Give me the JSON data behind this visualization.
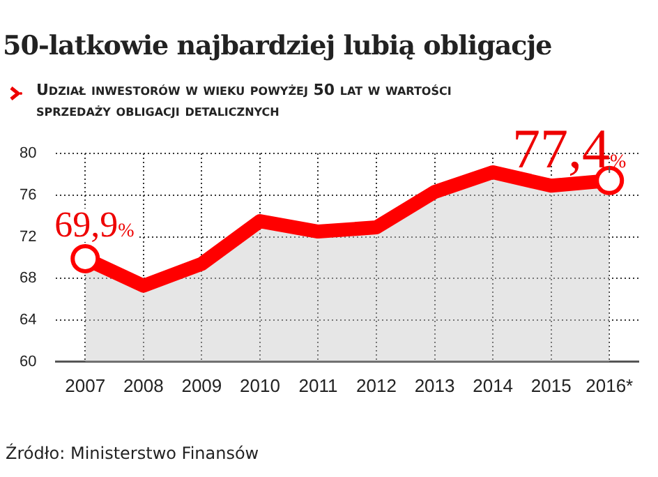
{
  "chart_data": {
    "type": "area",
    "title": "50-latkowie najbardziej lubią obligacje",
    "subtitle": "Udział inwestorów w wieku powyżej 50 lat w wartości sprzedaży obligacji detalicznych",
    "categories": [
      "2007",
      "2008",
      "2009",
      "2010",
      "2011",
      "2012",
      "2013",
      "2014",
      "2015",
      "2016*"
    ],
    "series": [
      {
        "color": "#ff0000",
        "values": [
          69.9,
          67.3,
          69.4,
          73.5,
          72.5,
          72.9,
          76.3,
          78.2,
          76.9,
          77.4
        ]
      }
    ],
    "ylim": [
      60,
      80
    ],
    "yticks": [
      60,
      64,
      68,
      72,
      76,
      80
    ],
    "grid": true,
    "legend": false,
    "line_style": "solid",
    "annotations": [
      {
        "text": "69,9%",
        "x": "2007",
        "y": 69.9
      },
      {
        "text": "77,4%",
        "x": "2016*",
        "y": 77.4
      },
      "Źródło: Ministerstwo Finansów"
    ]
  }
}
